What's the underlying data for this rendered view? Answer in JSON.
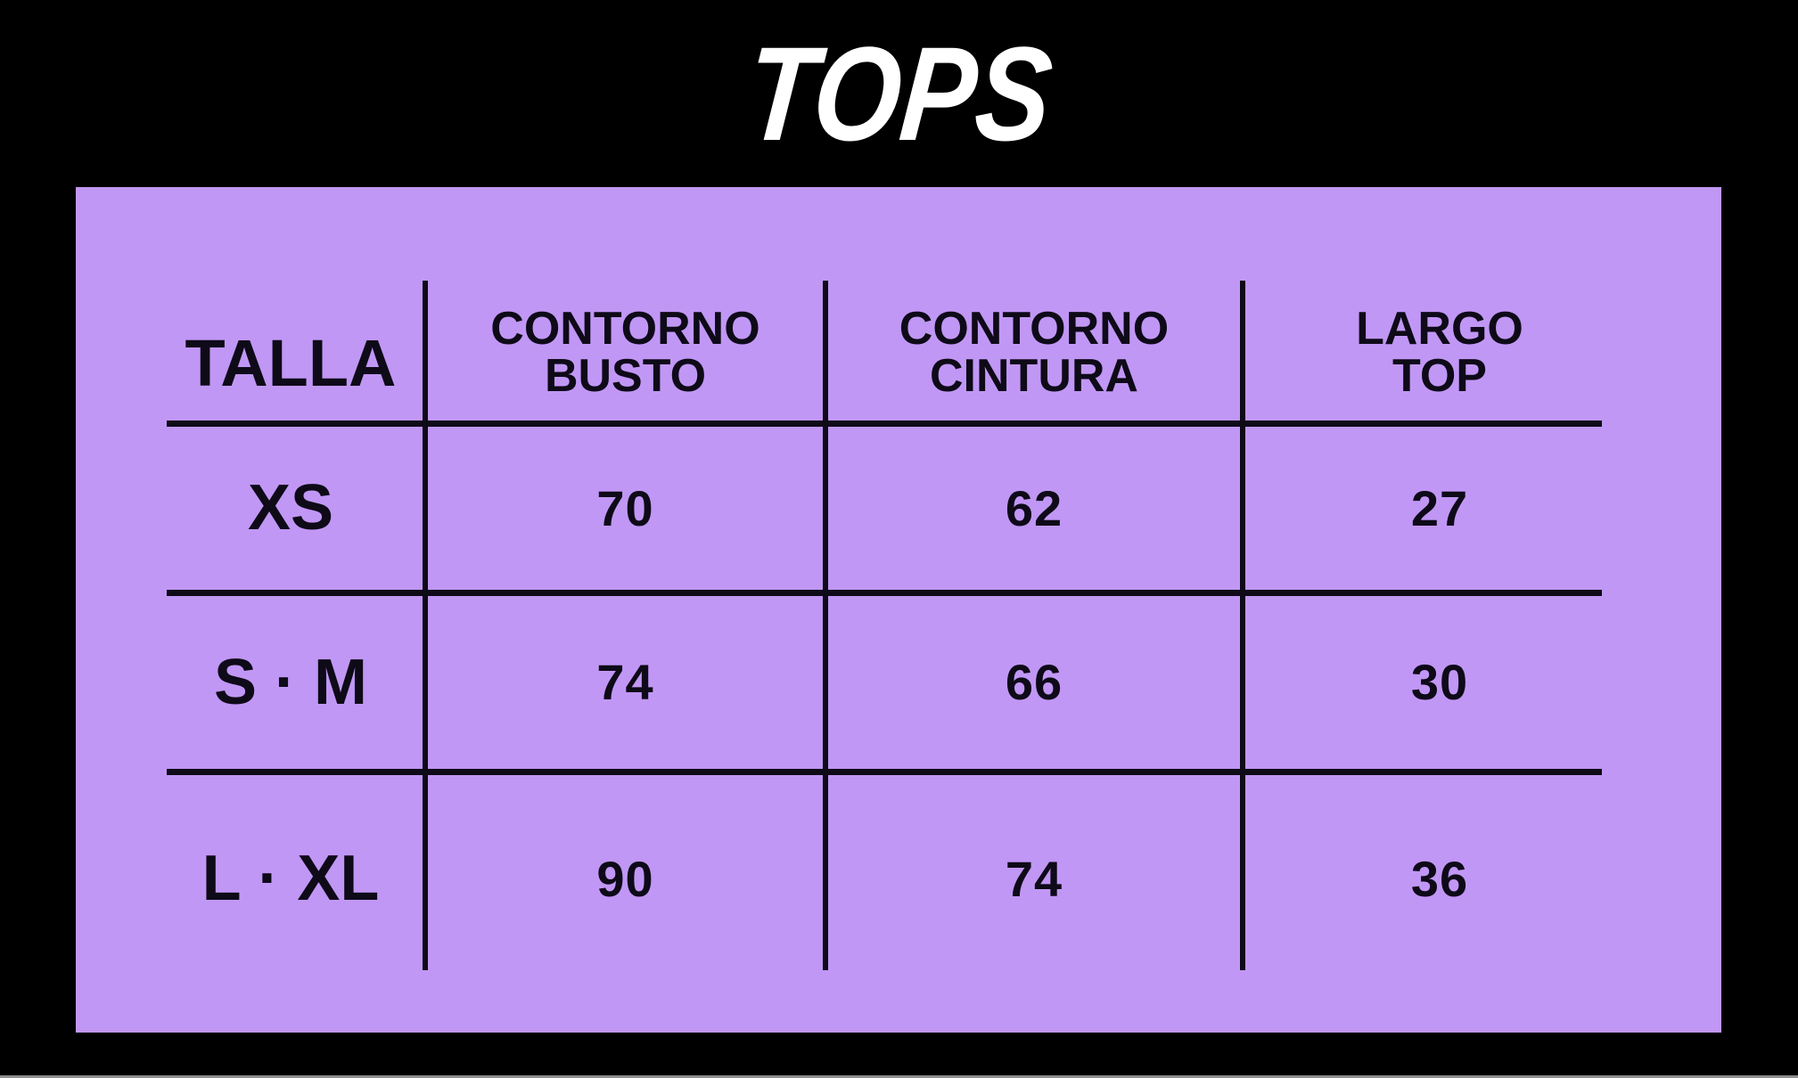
{
  "page": {
    "title": "TOPS"
  },
  "colors": {
    "background": "#000000",
    "panel": "#C197F5",
    "ink": "#0E0A18",
    "title_text": "#FFFFFF"
  },
  "table": {
    "headers": [
      {
        "lines": [
          "TALLA"
        ]
      },
      {
        "lines": [
          "CONTORNO",
          "BUSTO"
        ]
      },
      {
        "lines": [
          "CONTORNO",
          "CINTURA"
        ]
      },
      {
        "lines": [
          "LARGO",
          "TOP"
        ]
      }
    ],
    "rows": [
      {
        "size": "XS",
        "busto": "70",
        "cintura": "62",
        "largo": "27"
      },
      {
        "size": "S · M",
        "busto": "74",
        "cintura": "66",
        "largo": "30"
      },
      {
        "size": "L · XL",
        "busto": "90",
        "cintura": "74",
        "largo": "36"
      }
    ]
  },
  "chart_data": {
    "type": "table",
    "title": "TOPS",
    "columns": [
      "TALLA",
      "CONTORNO BUSTO",
      "CONTORNO CINTURA",
      "LARGO TOP"
    ],
    "rows": [
      [
        "XS",
        70,
        62,
        27
      ],
      [
        "S - M",
        74,
        66,
        30
      ],
      [
        "L - XL",
        90,
        74,
        36
      ]
    ],
    "layout_hints": {
      "grid": "open dividers, 3 vertical and 3 horizontal rules",
      "panel_background": "#C197F5",
      "page_background": "#000000"
    }
  }
}
